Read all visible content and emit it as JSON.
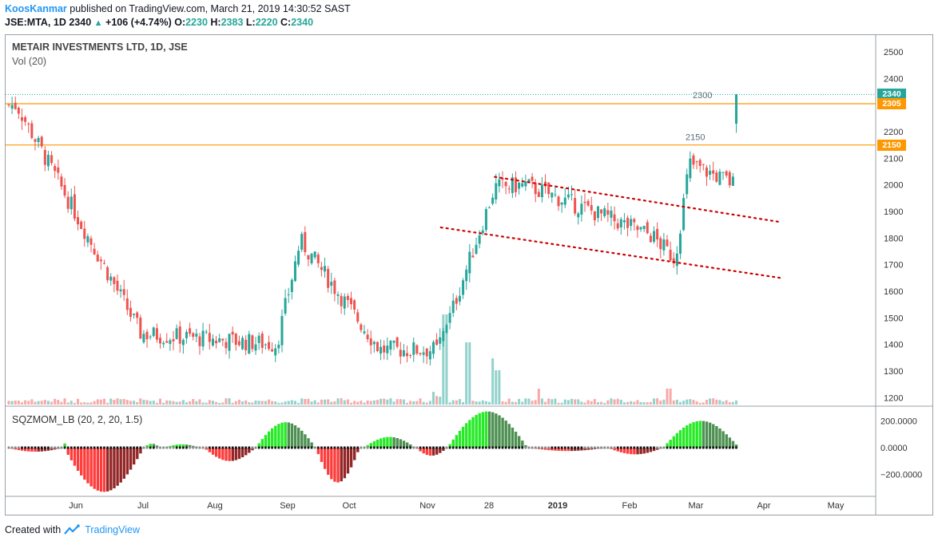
{
  "header": {
    "author": "KoosKanmar",
    "published": "published on TradingView.com, March 21, 2019 14:30:52 SAST",
    "symbol": "JSE:MTA, 1D",
    "last": "2340",
    "change": "+106 (+4.74%)",
    "open_label": "O:",
    "open": "2230",
    "high_label": "H:",
    "high": "2383",
    "low_label": "L:",
    "low": "2220",
    "close_label": "C:",
    "close": "2340"
  },
  "legend": {
    "title": "METAIR INVESTMENTS LTD, 1D, JSE",
    "volume": "Vol (20)",
    "indicator": "SQZMOM_LB (20, 2, 20, 1.5)"
  },
  "footer": {
    "created_with": "Created with",
    "brand": "TradingView"
  },
  "colors": {
    "up": "#26a69a",
    "down": "#ef5350",
    "level": "#ff9800",
    "trendline": "#cc0000",
    "mom_up_strong": "#00e600",
    "mom_up_weak": "#2e7d32",
    "mom_down_strong": "#ff1a1a",
    "mom_down_weak": "#800000"
  },
  "chart_data": {
    "type": "candlestick",
    "title": "METAIR INVESTMENTS LTD, 1D, JSE",
    "price_axis": {
      "ticks": [
        1200,
        1300,
        1400,
        1500,
        1600,
        1700,
        1800,
        1900,
        2000,
        2100,
        2200,
        2300,
        2400,
        2500
      ],
      "range": [
        1170,
        2560
      ]
    },
    "time_axis": {
      "ticks": [
        "Jun",
        "Jul",
        "Aug",
        "Sep",
        "Oct",
        "Nov",
        "28",
        "2019",
        "Feb",
        "Mar",
        "Apr",
        "May"
      ]
    },
    "price_tags": [
      {
        "label": "2340",
        "value": 2340,
        "color": "#26a69a"
      },
      {
        "label": "2305",
        "value": 2305,
        "color": "#ff9800"
      },
      {
        "label": "2150",
        "value": 2150,
        "color": "#ff9800"
      }
    ],
    "levels": [
      {
        "label": "2300",
        "value": 2305
      },
      {
        "label": "2150",
        "value": 2150
      }
    ],
    "trend_channel": [
      {
        "from": {
          "date": "2018-11-23",
          "price": 2030
        },
        "to": {
          "date": "2019-03-25",
          "price": 1860
        }
      },
      {
        "from": {
          "date": "2018-10-31",
          "price": 1840
        },
        "to": {
          "date": "2019-03-25",
          "price": 1650
        }
      }
    ],
    "key_points": [
      {
        "date": "2018-05-03",
        "price": 2300
      },
      {
        "date": "2018-06-25",
        "price": 1440
      },
      {
        "date": "2018-08-22",
        "price": 1400
      },
      {
        "date": "2018-09-01",
        "price": 1790
      },
      {
        "date": "2018-10-05",
        "price": 1380
      },
      {
        "date": "2018-10-30",
        "price": 1380
      },
      {
        "date": "2018-11-23",
        "price": 1990
      },
      {
        "date": "2018-12-06",
        "price": 2000
      },
      {
        "date": "2019-01-29",
        "price": 1810
      },
      {
        "date": "2019-02-08",
        "price": 1720
      },
      {
        "date": "2019-02-14",
        "price": 2080
      },
      {
        "date": "2019-03-11",
        "price": 1980
      },
      {
        "date": "2019-03-21",
        "price": 2340
      }
    ],
    "indicator": {
      "name": "SQZMOM_LB (20, 2, 20, 1.5)",
      "ticks": [
        200,
        0,
        -200
      ],
      "tick_labels": [
        "200.0000",
        "0.0000",
        "−200.0000"
      ]
    }
  }
}
